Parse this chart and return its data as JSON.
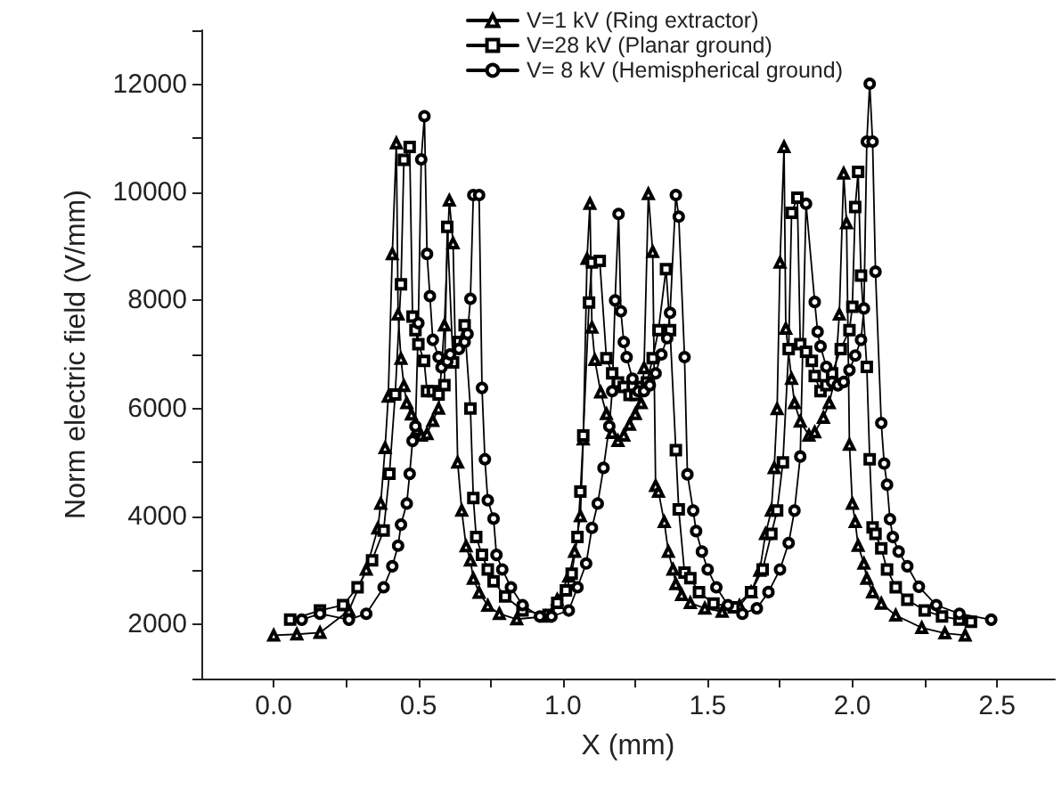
{
  "chart_data": {
    "type": "line",
    "xlabel": "X (mm)",
    "ylabel": "Norm electric field (V/mm)",
    "xlim": [
      -0.25,
      2.7
    ],
    "ylim": [
      1000,
      13000
    ],
    "xticks": [
      {
        "value": 0,
        "label": "0.0"
      },
      {
        "value": 0.25,
        "label": null
      },
      0.5,
      {
        "value": 0.75,
        "label": null
      },
      {
        "value": 1,
        "label": "1.0"
      },
      {
        "value": 1.25,
        "label": null
      },
      1.5,
      {
        "value": 1.75,
        "label": null
      },
      {
        "value": 2,
        "label": "2.0"
      },
      {
        "value": 2.25,
        "label": null
      },
      2.5
    ],
    "yticks": [
      {
        "value": 1000,
        "label": null
      },
      2000,
      {
        "value": 3000,
        "label": null
      },
      4000,
      {
        "value": 5000,
        "label": null
      },
      6000,
      {
        "value": 7000,
        "label": null
      },
      8000,
      {
        "value": 9000,
        "label": null
      },
      10000,
      {
        "value": 11000,
        "label": null
      },
      12000,
      {
        "value": 13000,
        "label": null
      }
    ],
    "grid": false,
    "legend": "top right",
    "line_style": "solid",
    "series": [
      {
        "name": "V=1 kV (Ring extractor)",
        "color": "#000000",
        "marker": "triangle",
        "x": [
          0,
          0.08,
          0.16,
          0.26,
          0.32,
          0.36,
          0.37,
          0.385,
          0.396,
          0.41,
          0.424,
          0.43,
          0.44,
          0.45,
          0.46,
          0.476,
          0.494,
          0.51,
          0.53,
          0.55,
          0.57,
          0.59,
          0.607,
          0.62,
          0.636,
          0.65,
          0.665,
          0.68,
          0.69,
          0.71,
          0.74,
          0.78,
          0.84,
          0.94,
          0.98,
          1.02,
          1.04,
          1.06,
          1.07,
          1.083,
          1.093,
          1.1,
          1.11,
          1.13,
          1.15,
          1.17,
          1.19,
          1.21,
          1.23,
          1.25,
          1.27,
          1.28,
          1.295,
          1.31,
          1.32,
          1.33,
          1.35,
          1.364,
          1.38,
          1.39,
          1.41,
          1.44,
          1.49,
          1.55,
          1.61,
          1.65,
          1.68,
          1.7,
          1.72,
          1.73,
          1.74,
          1.75,
          1.764,
          1.77,
          1.79,
          1.8,
          1.82,
          1.85,
          1.87,
          1.9,
          1.92,
          1.94,
          1.955,
          1.97,
          1.98,
          1.99,
          2.0,
          2.01,
          2.02,
          2.04,
          2.05,
          2.07,
          2.1,
          2.15,
          2.24,
          2.32,
          2.39
        ],
        "values": [
          1800,
          1820,
          1850,
          2260,
          3020,
          3780,
          4240,
          5270,
          6220,
          8860,
          10910,
          7740,
          6920,
          6420,
          6100,
          5890,
          5600,
          5500,
          5530,
          5770,
          6000,
          7540,
          9850,
          9060,
          5000,
          4110,
          3450,
          3190,
          2850,
          2590,
          2350,
          2200,
          2100,
          2150,
          2460,
          2890,
          3350,
          4010,
          5430,
          8770,
          9790,
          7500,
          6900,
          6300,
          5900,
          5550,
          5400,
          5500,
          5700,
          5900,
          6100,
          6750,
          9970,
          8900,
          4570,
          4460,
          3900,
          3350,
          3020,
          2750,
          2550,
          2400,
          2300,
          2240,
          2350,
          2600,
          3000,
          3680,
          4110,
          4900,
          5990,
          8700,
          10840,
          7480,
          6550,
          6100,
          5760,
          5500,
          5560,
          5830,
          6100,
          6550,
          7740,
          10350,
          9430,
          5330,
          4240,
          3900,
          3460,
          3130,
          2850,
          2600,
          2390,
          2170,
          1940,
          1840,
          1800
        ]
      },
      {
        "name": "V=28 kV (Planar ground)",
        "color": "#000000",
        "marker": "square",
        "x": [
          0.057,
          0.16,
          0.24,
          0.29,
          0.34,
          0.38,
          0.4,
          0.42,
          0.44,
          0.45,
          0.47,
          0.48,
          0.49,
          0.5,
          0.52,
          0.53,
          0.55,
          0.57,
          0.59,
          0.6,
          0.62,
          0.64,
          0.66,
          0.68,
          0.69,
          0.7,
          0.72,
          0.74,
          0.76,
          0.8,
          0.86,
          0.95,
          0.98,
          1.01,
          1.03,
          1.05,
          1.06,
          1.07,
          1.09,
          1.1,
          1.127,
          1.15,
          1.17,
          1.19,
          1.21,
          1.23,
          1.25,
          1.27,
          1.29,
          1.31,
          1.33,
          1.356,
          1.37,
          1.39,
          1.4,
          1.42,
          1.44,
          1.47,
          1.52,
          1.59,
          1.65,
          1.69,
          1.72,
          1.74,
          1.76,
          1.78,
          1.79,
          1.81,
          1.82,
          1.84,
          1.86,
          1.87,
          1.89,
          1.91,
          1.93,
          1.96,
          1.99,
          2.0,
          2.01,
          2.02,
          2.03,
          2.05,
          2.06,
          2.07,
          2.08,
          2.1,
          2.12,
          2.15,
          2.19,
          2.25,
          2.31,
          2.37,
          2.41
        ],
        "values": [
          2090,
          2260,
          2360,
          2690,
          3190,
          3740,
          4790,
          6260,
          8300,
          10600,
          10840,
          7700,
          7450,
          7190,
          6880,
          6320,
          6320,
          6260,
          6430,
          9360,
          6850,
          7230,
          7540,
          6000,
          4340,
          3620,
          3290,
          3020,
          2800,
          2520,
          2260,
          2180,
          2400,
          2630,
          2940,
          3620,
          4460,
          5500,
          7960,
          8700,
          8730,
          6930,
          6650,
          6480,
          6400,
          6250,
          6250,
          6400,
          6480,
          6930,
          7450,
          8580,
          7450,
          5230,
          4130,
          2960,
          2860,
          2600,
          2390,
          2320,
          2600,
          3020,
          3680,
          4110,
          5000,
          7100,
          9620,
          9900,
          7190,
          7050,
          6880,
          6600,
          6320,
          6430,
          6650,
          7100,
          7450,
          7880,
          9730,
          10380,
          8460,
          6770,
          5060,
          3800,
          3680,
          3410,
          3020,
          2690,
          2460,
          2260,
          2150,
          2090,
          2050
        ]
      },
      {
        "name": "V= 8 kV (Hemispherical ground)",
        "color": "#000000",
        "marker": "circle",
        "x": [
          0.097,
          0.16,
          0.26,
          0.32,
          0.38,
          0.41,
          0.43,
          0.44,
          0.46,
          0.47,
          0.48,
          0.49,
          0.5,
          0.51,
          0.521,
          0.53,
          0.54,
          0.55,
          0.57,
          0.58,
          0.6,
          0.61,
          0.64,
          0.66,
          0.67,
          0.68,
          0.69,
          0.71,
          0.72,
          0.73,
          0.74,
          0.76,
          0.77,
          0.79,
          0.82,
          0.86,
          0.92,
          0.96,
          1.02,
          1.05,
          1.08,
          1.1,
          1.12,
          1.14,
          1.16,
          1.17,
          1.18,
          1.192,
          1.2,
          1.21,
          1.22,
          1.24,
          1.26,
          1.28,
          1.3,
          1.32,
          1.34,
          1.36,
          1.37,
          1.39,
          1.4,
          1.42,
          1.43,
          1.45,
          1.46,
          1.48,
          1.5,
          1.53,
          1.57,
          1.62,
          1.67,
          1.71,
          1.75,
          1.78,
          1.8,
          1.82,
          1.84,
          1.87,
          1.88,
          1.89,
          1.91,
          1.93,
          1.95,
          1.97,
          1.99,
          2.01,
          2.03,
          2.04,
          2.05,
          2.06,
          2.07,
          2.08,
          2.1,
          2.11,
          2.12,
          2.13,
          2.14,
          2.16,
          2.19,
          2.23,
          2.29,
          2.37,
          2.48
        ],
        "values": [
          2090,
          2200,
          2090,
          2200,
          2690,
          3080,
          3460,
          3850,
          4240,
          4790,
          5400,
          5670,
          7580,
          10610,
          11410,
          8860,
          8080,
          7270,
          6950,
          6760,
          6870,
          7000,
          7100,
          7230,
          7380,
          8030,
          9950,
          9950,
          6380,
          5060,
          4300,
          3960,
          3290,
          3020,
          2690,
          2360,
          2150,
          2150,
          2260,
          2690,
          3130,
          3790,
          4240,
          4900,
          5670,
          6320,
          8000,
          9600,
          7800,
          7230,
          6950,
          6550,
          6320,
          6320,
          6430,
          6650,
          7000,
          7300,
          7770,
          9950,
          9550,
          6950,
          4780,
          4110,
          3730,
          3350,
          3020,
          2690,
          2360,
          2200,
          2300,
          2600,
          3020,
          3510,
          4110,
          5110,
          9790,
          7970,
          7420,
          7150,
          6770,
          6490,
          6430,
          6490,
          6710,
          6980,
          7270,
          7850,
          10940,
          12010,
          10940,
          8530,
          5730,
          4980,
          4590,
          3950,
          3620,
          3350,
          3080,
          2700,
          2360,
          2200,
          2090
        ]
      }
    ]
  }
}
